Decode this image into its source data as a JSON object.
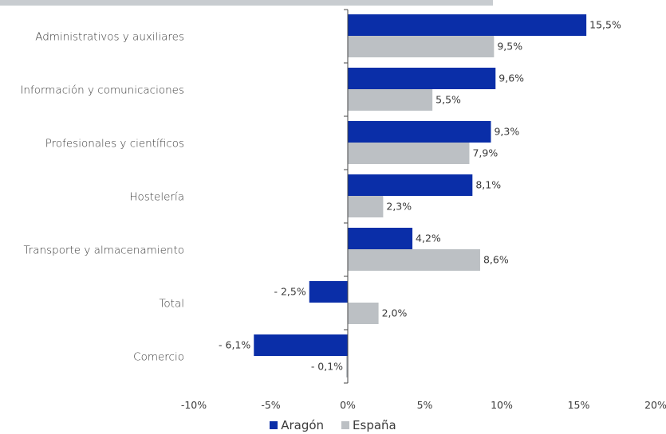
{
  "chart_data": {
    "type": "bar",
    "orientation": "horizontal",
    "categories": [
      "Administrativos y auxiliares",
      "Información y comunicaciones",
      "Profesionales y científicos",
      "Hostelería",
      "Transporte y almacenamiento",
      "Total",
      "Comercio"
    ],
    "series": [
      {
        "name": "Aragón",
        "color": "#0a2ea8",
        "values": [
          15.5,
          9.6,
          9.3,
          8.1,
          4.2,
          -2.5,
          -6.1
        ],
        "labels": [
          "15,5%",
          "9,6%",
          "9,3%",
          "8,1%",
          "4,2%",
          "- 2,5%",
          "- 6,1%"
        ]
      },
      {
        "name": "España",
        "color": "#bcc0c4",
        "values": [
          9.5,
          5.5,
          7.9,
          2.3,
          8.6,
          2.0,
          -0.1
        ],
        "labels": [
          "9,5%",
          "5,5%",
          "7,9%",
          "2,3%",
          "8,6%",
          "2,0%",
          "- 0,1%"
        ]
      }
    ],
    "xlim": [
      -10,
      20
    ],
    "xticks": [
      -10,
      -5,
      0,
      5,
      10,
      15,
      20
    ],
    "xtick_labels": [
      "-10%",
      "-5%",
      "0%",
      "5%",
      "10%",
      "15%",
      "20%"
    ],
    "legend_position": "bottom",
    "grid": false
  }
}
